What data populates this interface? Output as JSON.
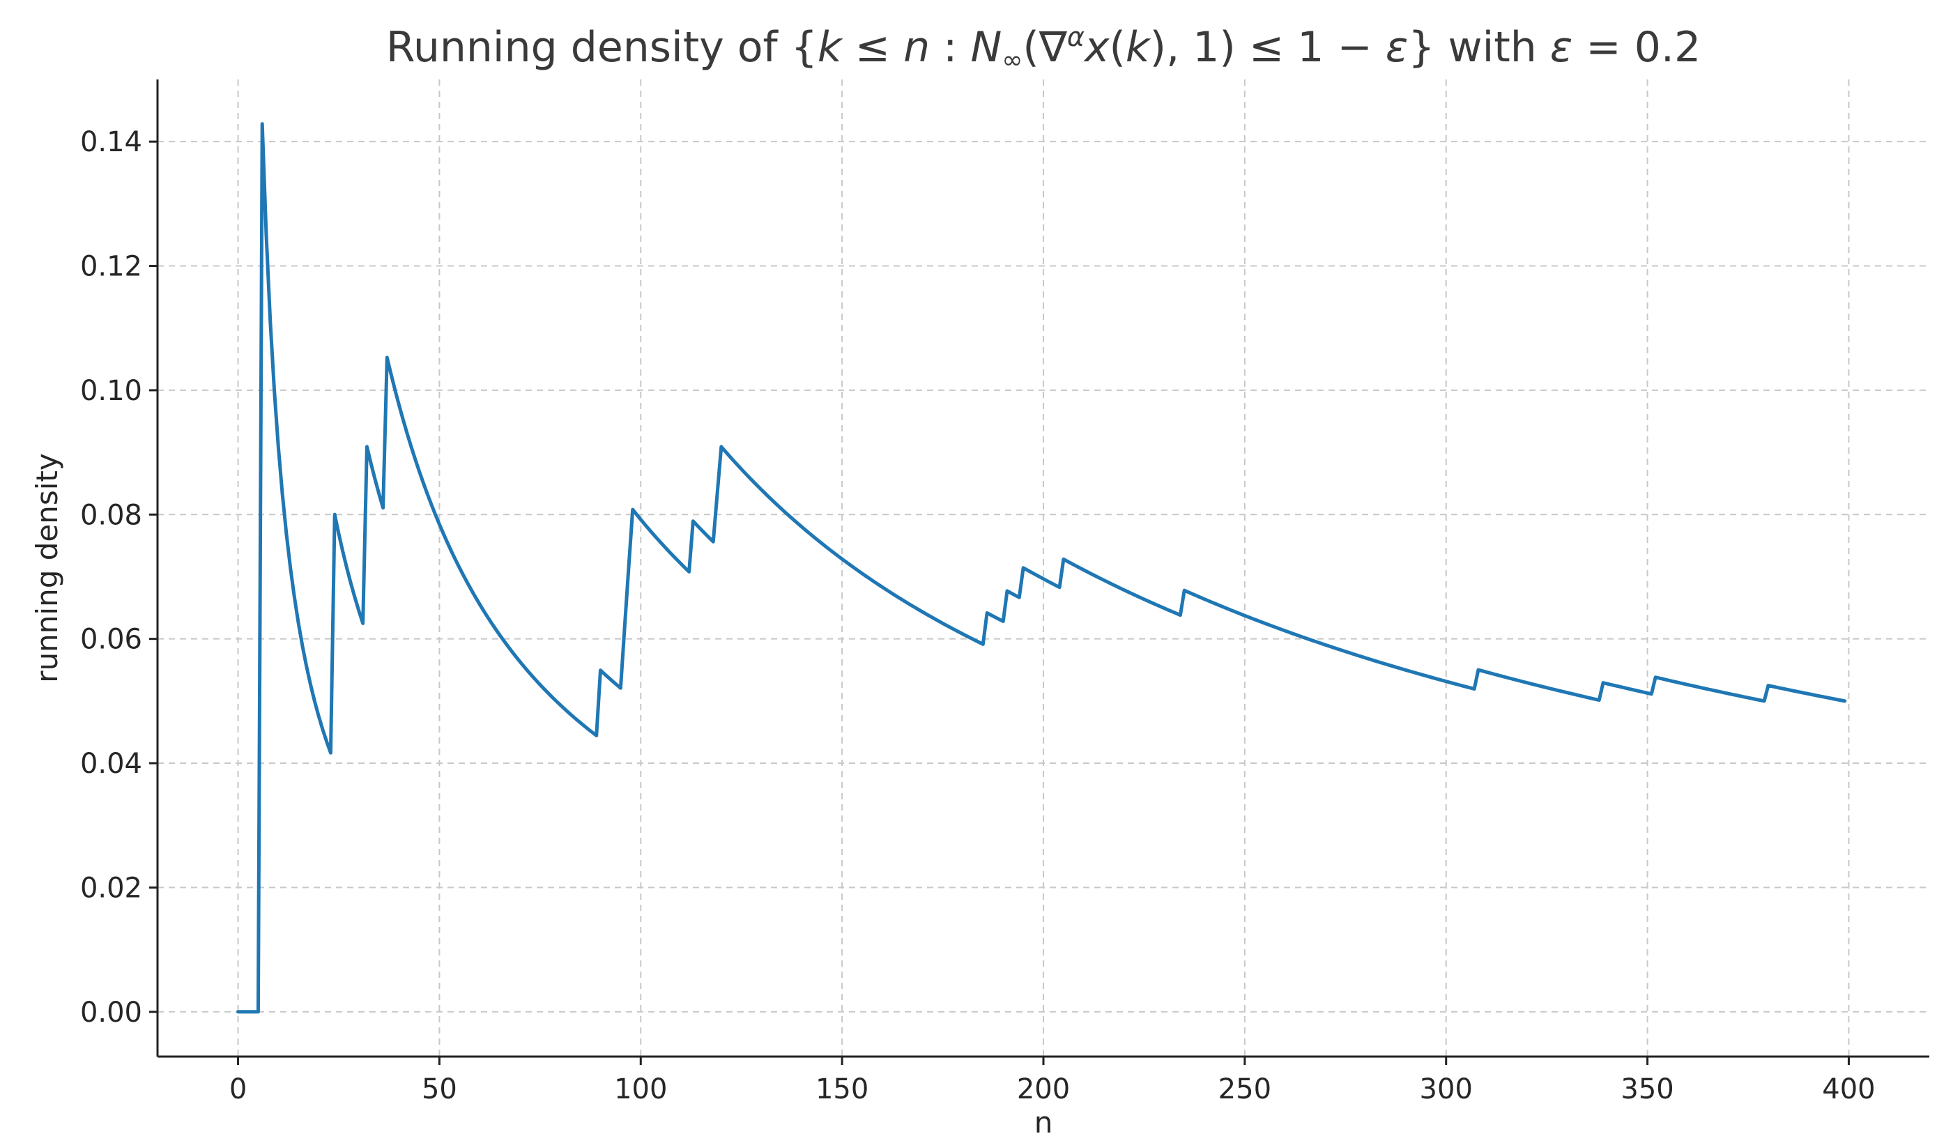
{
  "chart_data": {
    "type": "line",
    "title": "Running density of {k ≤ n :  N∞(∇ᵅx(k), 1) ≤ 1 − ε} with ε = 0.2",
    "title_parts": {
      "prefix": "Running density of {",
      "k": "k",
      "leq1": " ≤ ",
      "n": "n",
      "colon": " :  ",
      "N": "N",
      "inf_sub": "∞",
      "open_paren": "(∇",
      "alpha_sup": "α",
      "x": "x",
      "open_k": "(",
      "k2": "k",
      "close_args": "), 1) ≤ 1 − ",
      "eps1": "ε",
      "close_set": "} with ",
      "eps2": "ε",
      "eq": " = 0.2"
    },
    "xlabel": "n",
    "ylabel": "running density",
    "xlim": [
      -20,
      420
    ],
    "ylim": [
      -0.0072,
      0.15
    ],
    "grid": true,
    "x_ticks": [
      0,
      50,
      100,
      150,
      200,
      250,
      300,
      350,
      400
    ],
    "x_tick_labels": [
      "0",
      "50",
      "100",
      "150",
      "200",
      "250",
      "300",
      "350",
      "400"
    ],
    "y_ticks": [
      0.0,
      0.02,
      0.04,
      0.06,
      0.08,
      0.1,
      0.12,
      0.14
    ],
    "y_tick_labels": [
      "0.00",
      "0.02",
      "0.04",
      "0.06",
      "0.08",
      "0.10",
      "0.12",
      "0.14"
    ],
    "line_color": "#1f77b4",
    "series": [
      {
        "name": "",
        "hits": [
          6,
          24,
          32,
          37,
          90,
          96,
          97,
          98,
          113,
          119,
          120,
          186,
          191,
          195,
          205,
          235,
          308,
          339,
          352,
          380
        ],
        "n_max": 399
      }
    ]
  }
}
